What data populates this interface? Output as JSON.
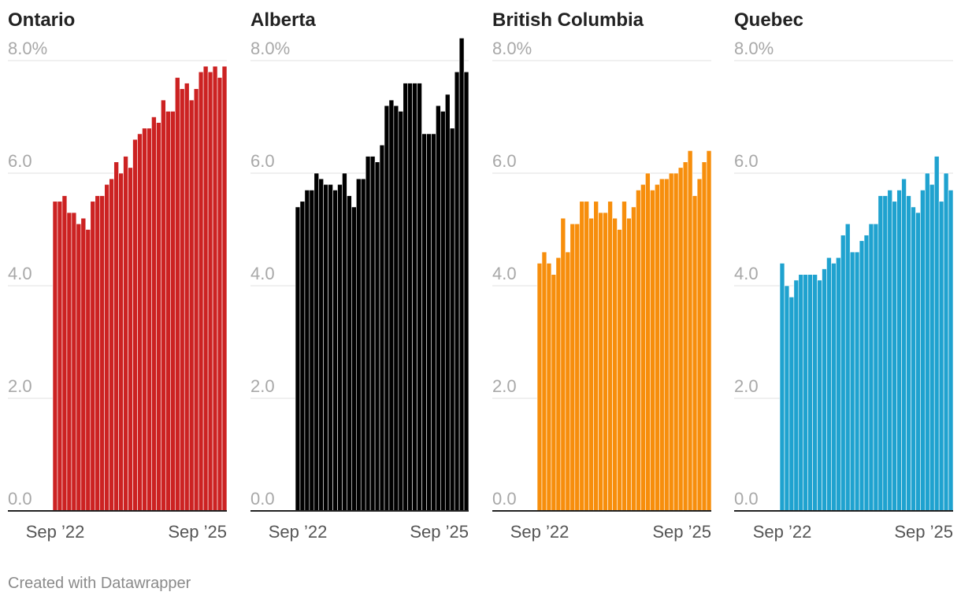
{
  "footer": {
    "credit": "Created with Datawrapper"
  },
  "chart_data": [
    {
      "type": "bar",
      "title": "Ontario",
      "color": "#cc2222",
      "ylim": [
        0,
        8
      ],
      "yticks": [
        0,
        2,
        4,
        6,
        8
      ],
      "ytick_labels": [
        "0.0",
        "2.0",
        "4.0",
        "6.0",
        "8.0%"
      ],
      "x_tick_labels": [
        "Sep ’22",
        "Sep ’25"
      ],
      "grid": true,
      "values": [
        5.5,
        5.5,
        5.6,
        5.3,
        5.3,
        5.1,
        5.2,
        5.0,
        5.5,
        5.6,
        5.6,
        5.8,
        5.9,
        6.2,
        6.0,
        6.3,
        6.1,
        6.6,
        6.7,
        6.8,
        6.8,
        7.0,
        6.9,
        7.3,
        7.1,
        7.1,
        7.7,
        7.5,
        7.6,
        7.3,
        7.5,
        7.8,
        7.9,
        7.8,
        7.9,
        7.7,
        7.9
      ]
    },
    {
      "type": "bar",
      "title": "Alberta",
      "color": "#000000",
      "ylim": [
        0,
        8
      ],
      "yticks": [
        0,
        2,
        4,
        6,
        8
      ],
      "ytick_labels": [
        "0.0",
        "2.0",
        "4.0",
        "6.0",
        "8.0%"
      ],
      "x_tick_labels": [
        "Sep ’22",
        "Sep ’25"
      ],
      "grid": true,
      "values": [
        5.4,
        5.5,
        5.7,
        5.7,
        6.0,
        5.9,
        5.8,
        5.8,
        5.7,
        5.8,
        6.0,
        5.6,
        5.4,
        5.9,
        5.9,
        6.3,
        6.3,
        6.2,
        6.5,
        7.2,
        7.3,
        7.2,
        7.1,
        7.6,
        7.6,
        7.6,
        7.6,
        6.7,
        6.7,
        6.7,
        7.2,
        7.1,
        7.4,
        6.8,
        7.8,
        8.4,
        7.8
      ]
    },
    {
      "type": "bar",
      "title": "British Columbia",
      "color": "#f78e0c",
      "ylim": [
        0,
        8
      ],
      "yticks": [
        0,
        2,
        4,
        6,
        8
      ],
      "ytick_labels": [
        "0.0",
        "2.0",
        "4.0",
        "6.0",
        "8.0%"
      ],
      "x_tick_labels": [
        "Sep ’22",
        "Sep ’25"
      ],
      "grid": true,
      "values": [
        4.4,
        4.6,
        4.4,
        4.2,
        4.5,
        5.2,
        4.6,
        5.1,
        5.1,
        5.5,
        5.5,
        5.2,
        5.5,
        5.3,
        5.3,
        5.5,
        5.2,
        5.0,
        5.5,
        5.2,
        5.4,
        5.7,
        5.8,
        6.0,
        5.7,
        5.8,
        5.9,
        5.9,
        6.0,
        6.0,
        6.1,
        6.2,
        6.4,
        5.6,
        5.9,
        6.2,
        6.4
      ]
    },
    {
      "type": "bar",
      "title": "Quebec",
      "color": "#1fa2cf",
      "ylim": [
        0,
        8
      ],
      "yticks": [
        0,
        2,
        4,
        6,
        8
      ],
      "ytick_labels": [
        "0.0",
        "2.0",
        "4.0",
        "6.0",
        "8.0%"
      ],
      "x_tick_labels": [
        "Sep ’22",
        "Sep ’25"
      ],
      "grid": true,
      "values": [
        4.4,
        4.0,
        3.8,
        4.1,
        4.2,
        4.2,
        4.2,
        4.2,
        4.1,
        4.3,
        4.5,
        4.4,
        4.5,
        4.9,
        5.1,
        4.6,
        4.6,
        4.8,
        4.9,
        5.1,
        5.1,
        5.6,
        5.6,
        5.7,
        5.5,
        5.7,
        5.9,
        5.6,
        5.4,
        5.3,
        5.7,
        6.0,
        5.8,
        6.3,
        5.5,
        6.0,
        5.7
      ]
    }
  ]
}
